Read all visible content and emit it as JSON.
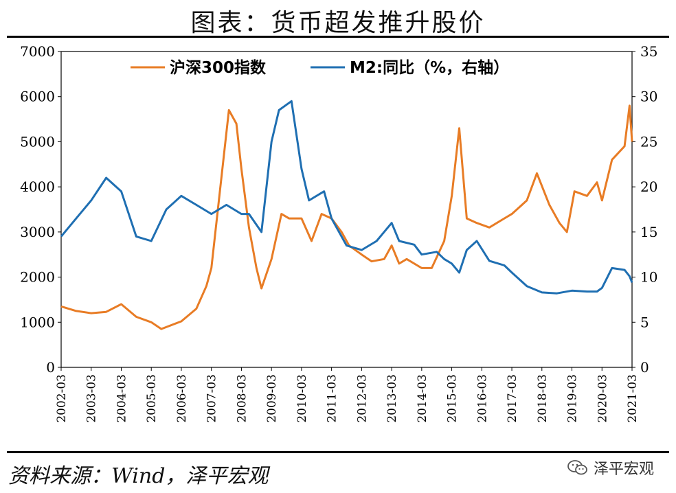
{
  "title": "图表：货币超发推升股价",
  "source": "资料来源：Wind，泽平宏观",
  "watermark": "泽平宏观",
  "watermark_icon": "wechat-icon",
  "colors": {
    "csi300": "#E87C25",
    "m2": "#1F6FB2",
    "axis": "#000000"
  },
  "chart_data": {
    "type": "line",
    "title": "图表：货币超发推升股价",
    "xlabel": "",
    "ylabel_left": "",
    "ylabel_right": "",
    "ylim_left": [
      0,
      7000
    ],
    "ylim_right": [
      0,
      35
    ],
    "yticks_left": [
      "0",
      "1000",
      "2000",
      "3000",
      "4000",
      "5000",
      "6000",
      "7000"
    ],
    "yticks_right": [
      "0",
      "5",
      "10",
      "15",
      "20",
      "25",
      "30",
      "35"
    ],
    "x_ticks": [
      "2002-03",
      "2003-03",
      "2004-03",
      "2005-03",
      "2006-03",
      "2007-03",
      "2008-03",
      "2009-03",
      "2010-03",
      "2011-03",
      "2012-03",
      "2013-03",
      "2014-03",
      "2015-03",
      "2016-03",
      "2017-03",
      "2018-03",
      "2019-03",
      "2020-03",
      "2021-03"
    ],
    "grid": false,
    "legend_position": "top-center",
    "series": [
      {
        "name": "沪深300指数",
        "axis": "left",
        "x": [
          "2002-03",
          "2002-09",
          "2003-03",
          "2003-09",
          "2004-03",
          "2004-09",
          "2005-03",
          "2005-07",
          "2006-03",
          "2006-09",
          "2007-01",
          "2007-03",
          "2007-06",
          "2007-10",
          "2008-01",
          "2008-03",
          "2008-06",
          "2008-09",
          "2008-11",
          "2009-03",
          "2009-07",
          "2009-10",
          "2010-03",
          "2010-07",
          "2010-11",
          "2011-03",
          "2011-07",
          "2011-10",
          "2012-03",
          "2012-07",
          "2012-12",
          "2013-03",
          "2013-06",
          "2013-09",
          "2014-03",
          "2014-07",
          "2014-12",
          "2015-03",
          "2015-06",
          "2015-09",
          "2016-01",
          "2016-06",
          "2016-12",
          "2017-03",
          "2017-09",
          "2018-01",
          "2018-06",
          "2018-10",
          "2019-01",
          "2019-04",
          "2019-09",
          "2020-01",
          "2020-03",
          "2020-07",
          "2020-12",
          "2021-02",
          "2021-03"
        ],
        "values": [
          1350,
          1250,
          1200,
          1230,
          1400,
          1120,
          1000,
          850,
          1020,
          1300,
          1800,
          2200,
          3700,
          5700,
          5400,
          4400,
          3100,
          2200,
          1750,
          2400,
          3400,
          3300,
          3300,
          2800,
          3400,
          3300,
          3000,
          2700,
          2500,
          2350,
          2400,
          2700,
          2300,
          2400,
          2200,
          2200,
          2800,
          3800,
          5300,
          3300,
          3200,
          3100,
          3300,
          3400,
          3700,
          4300,
          3600,
          3200,
          3000,
          3900,
          3800,
          4100,
          3700,
          4600,
          4900,
          5800,
          5000
        ]
      },
      {
        "name": "M2:同比（%，右轴）",
        "axis": "right",
        "x": [
          "2002-03",
          "2002-09",
          "2003-03",
          "2003-09",
          "2004-03",
          "2004-09",
          "2005-03",
          "2005-09",
          "2006-03",
          "2006-09",
          "2007-03",
          "2007-09",
          "2008-03",
          "2008-06",
          "2008-11",
          "2009-03",
          "2009-06",
          "2009-11",
          "2010-03",
          "2010-06",
          "2010-12",
          "2011-03",
          "2011-09",
          "2012-03",
          "2012-09",
          "2013-03",
          "2013-06",
          "2013-12",
          "2014-03",
          "2014-09",
          "2014-12",
          "2015-03",
          "2015-06",
          "2015-09",
          "2016-01",
          "2016-06",
          "2016-12",
          "2017-03",
          "2017-09",
          "2018-03",
          "2018-09",
          "2019-03",
          "2019-09",
          "2020-01",
          "2020-03",
          "2020-07",
          "2020-12",
          "2021-02",
          "2021-03"
        ],
        "values": [
          14.5,
          16.5,
          18.5,
          21,
          19.5,
          14.5,
          14,
          17.5,
          19,
          18,
          17,
          18,
          17,
          17,
          15,
          25,
          28.5,
          29.5,
          22,
          18.5,
          19.5,
          16.5,
          13.5,
          13,
          14,
          16,
          14,
          13.6,
          12.5,
          12.8,
          12,
          11.5,
          10.5,
          13,
          14,
          11.8,
          11.3,
          10.5,
          9,
          8.3,
          8.2,
          8.5,
          8.4,
          8.4,
          8.8,
          11,
          10.8,
          10.1,
          9.4
        ]
      }
    ]
  }
}
